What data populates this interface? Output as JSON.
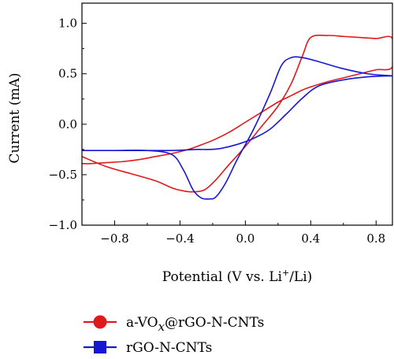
{
  "chart_data": {
    "type": "line",
    "xlabel_prefix": "Potential (V vs. Li",
    "xlabel_sup": "+",
    "xlabel_suffix": "/Li)",
    "ylabel": "Current (mA)",
    "xlim": [
      -1.0,
      0.9
    ],
    "ylim": [
      -1.0,
      1.2
    ],
    "x_ticks": [
      -0.8,
      -0.4,
      0.0,
      0.4,
      0.8
    ],
    "x_tick_labels": [
      "−0.8",
      "−0.4",
      "0.0",
      "0.4",
      "0.8"
    ],
    "y_ticks": [
      -1.0,
      -0.5,
      0.0,
      0.5,
      1.0
    ],
    "y_tick_labels": [
      "−1.0",
      "−0.5",
      "0.0",
      "0.5",
      "1.0"
    ],
    "grid": false,
    "legend_position": "bottom",
    "series": [
      {
        "legend_prefix": "a-VO",
        "legend_sub": "x",
        "legend_suffix": "@rGO-N-CNTs",
        "color": "#e0191b",
        "marker": "circle",
        "x": [
          -1.0,
          -0.85,
          -0.7,
          -0.55,
          -0.45,
          -0.38,
          -0.32,
          -0.25,
          -0.18,
          -0.1,
          0.0,
          0.1,
          0.2,
          0.28,
          0.35,
          0.4,
          0.5,
          0.6,
          0.7,
          0.8,
          0.9,
          0.9,
          0.8,
          0.7,
          0.6,
          0.5,
          0.4,
          0.35,
          0.3,
          0.25,
          0.2,
          0.1,
          0.0,
          -0.1,
          -0.2,
          -0.28,
          -0.35,
          -0.45,
          -0.55,
          -0.65,
          -0.75,
          -0.85,
          -0.95,
          -1.0
        ],
        "y": [
          -0.32,
          -0.42,
          -0.49,
          -0.56,
          -0.63,
          -0.66,
          -0.67,
          -0.65,
          -0.55,
          -0.4,
          -0.22,
          -0.02,
          0.18,
          0.4,
          0.68,
          0.86,
          0.88,
          0.87,
          0.86,
          0.85,
          0.85,
          0.57,
          0.54,
          0.5,
          0.46,
          0.42,
          0.37,
          0.34,
          0.3,
          0.26,
          0.22,
          0.12,
          0.02,
          -0.08,
          -0.16,
          -0.21,
          -0.25,
          -0.29,
          -0.32,
          -0.35,
          -0.37,
          -0.38,
          -0.39,
          -0.39
        ]
      },
      {
        "legend_prefix": "rGO-N-CNTs",
        "legend_sub": "",
        "legend_suffix": "",
        "color": "#1616d6",
        "marker": "square",
        "x": [
          -1.0,
          -0.8,
          -0.6,
          -0.45,
          -0.38,
          -0.32,
          -0.27,
          -0.22,
          -0.18,
          -0.12,
          -0.05,
          0.05,
          0.15,
          0.22,
          0.28,
          0.35,
          0.45,
          0.6,
          0.75,
          0.9,
          0.9,
          0.75,
          0.6,
          0.45,
          0.35,
          0.25,
          0.15,
          0.05,
          -0.05,
          -0.15,
          -0.22,
          -0.3,
          -0.45,
          -0.6,
          -0.8,
          -1.0
        ],
        "y": [
          -0.26,
          -0.26,
          -0.26,
          -0.3,
          -0.45,
          -0.65,
          -0.73,
          -0.74,
          -0.72,
          -0.58,
          -0.35,
          -0.05,
          0.3,
          0.58,
          0.66,
          0.66,
          0.62,
          0.55,
          0.5,
          0.48,
          0.48,
          0.47,
          0.44,
          0.38,
          0.26,
          0.1,
          -0.05,
          -0.14,
          -0.2,
          -0.24,
          -0.25,
          -0.25,
          -0.26,
          -0.26,
          -0.26,
          -0.26
        ]
      }
    ]
  }
}
